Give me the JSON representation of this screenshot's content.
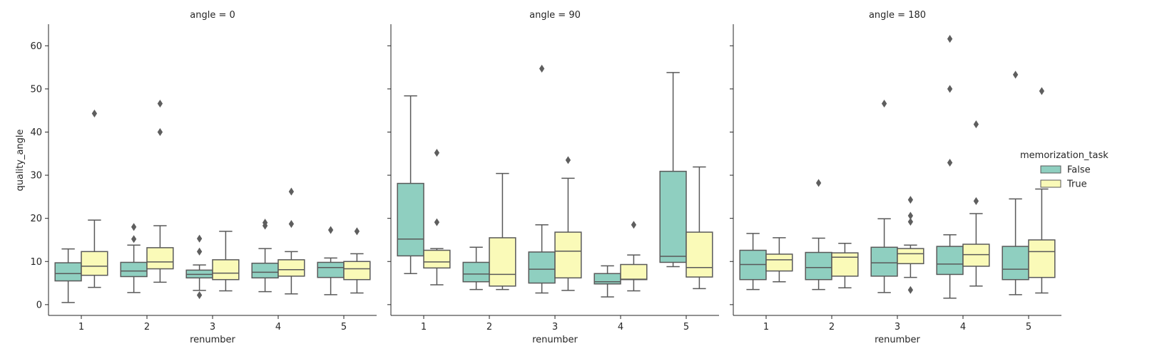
{
  "figure": {
    "y_label": "quality_angle",
    "legend_title": "memorization_task",
    "hue_order": [
      "False",
      "True"
    ],
    "hue_colors": [
      "#8fcfc0",
      "#fafab8"
    ],
    "box_edge_color": "#595959",
    "panel_titles": [
      "angle = 0",
      "angle = 90",
      "angle = 180"
    ]
  },
  "chart_data": [
    {
      "type": "box",
      "title": "angle = 0",
      "xlabel": "renumber",
      "ylabel": "quality_angle",
      "categories": [
        "1",
        "2",
        "3",
        "4",
        "5"
      ],
      "ylim": [
        -2.5,
        65
      ],
      "yticks": [
        0,
        10,
        20,
        30,
        40,
        50,
        60
      ],
      "legend": "right",
      "series": [
        {
          "name": "False",
          "boxes": [
            {
              "q1": 5.5,
              "median": 7.2,
              "q3": 9.7,
              "whislo": 0.5,
              "whishi": 12.9,
              "fliers": []
            },
            {
              "q1": 6.5,
              "median": 7.8,
              "q3": 9.8,
              "whislo": 2.8,
              "whishi": 13.8,
              "fliers": [
                18.0,
                15.2
              ]
            },
            {
              "q1": 6.2,
              "median": 7.0,
              "q3": 8.0,
              "whislo": 3.3,
              "whishi": 9.2,
              "fliers": [
                15.3,
                12.3,
                2.2
              ]
            },
            {
              "q1": 6.2,
              "median": 7.5,
              "q3": 9.6,
              "whislo": 3.0,
              "whishi": 13.0,
              "fliers": [
                19.0,
                18.3
              ]
            },
            {
              "q1": 6.3,
              "median": 8.6,
              "q3": 9.8,
              "whislo": 2.3,
              "whishi": 10.8,
              "fliers": [
                17.3
              ]
            }
          ]
        },
        {
          "name": "True",
          "boxes": [
            {
              "q1": 6.8,
              "median": 8.9,
              "q3": 12.3,
              "whislo": 4.0,
              "whishi": 19.6,
              "fliers": [
                44.3
              ]
            },
            {
              "q1": 8.3,
              "median": 9.9,
              "q3": 13.2,
              "whislo": 5.2,
              "whishi": 18.3,
              "fliers": [
                46.6,
                40.0
              ]
            },
            {
              "q1": 5.8,
              "median": 7.3,
              "q3": 10.4,
              "whislo": 3.2,
              "whishi": 17.0,
              "fliers": []
            },
            {
              "q1": 6.6,
              "median": 8.1,
              "q3": 10.4,
              "whislo": 2.5,
              "whishi": 12.3,
              "fliers": [
                26.2,
                18.7
              ]
            },
            {
              "q1": 5.8,
              "median": 8.3,
              "q3": 10.0,
              "whislo": 2.7,
              "whishi": 11.8,
              "fliers": [
                17.0
              ]
            }
          ]
        }
      ]
    },
    {
      "type": "box",
      "title": "angle = 90",
      "xlabel": "renumber",
      "ylabel": "",
      "categories": [
        "1",
        "2",
        "3",
        "4",
        "5"
      ],
      "ylim": [
        -2.5,
        65
      ],
      "yticks": [
        0,
        10,
        20,
        30,
        40,
        50,
        60
      ],
      "legend": "right",
      "series": [
        {
          "name": "False",
          "boxes": [
            {
              "q1": 11.3,
              "median": 15.2,
              "q3": 28.1,
              "whislo": 7.2,
              "whishi": 48.4,
              "fliers": []
            },
            {
              "q1": 5.3,
              "median": 7.1,
              "q3": 9.8,
              "whislo": 3.5,
              "whishi": 13.3,
              "fliers": []
            },
            {
              "q1": 5.0,
              "median": 8.2,
              "q3": 12.2,
              "whislo": 2.7,
              "whishi": 18.5,
              "fliers": [
                54.7
              ]
            },
            {
              "q1": 4.8,
              "median": 5.3,
              "q3": 7.2,
              "whislo": 1.8,
              "whishi": 9.0,
              "fliers": []
            },
            {
              "q1": 9.8,
              "median": 11.2,
              "q3": 30.9,
              "whislo": 8.8,
              "whishi": 53.8,
              "fliers": []
            }
          ]
        },
        {
          "name": "True",
          "boxes": [
            {
              "q1": 8.5,
              "median": 9.9,
              "q3": 12.6,
              "whislo": 4.6,
              "whishi": 13.0,
              "fliers": [
                35.2,
                19.1
              ]
            },
            {
              "q1": 4.3,
              "median": 7.0,
              "q3": 15.5,
              "whislo": 3.5,
              "whishi": 30.4,
              "fliers": []
            },
            {
              "q1": 6.2,
              "median": 12.4,
              "q3": 16.8,
              "whislo": 3.3,
              "whishi": 29.3,
              "fliers": [
                33.5
              ]
            },
            {
              "q1": 5.8,
              "median": 5.9,
              "q3": 9.3,
              "whislo": 3.2,
              "whishi": 11.5,
              "fliers": [
                18.5
              ]
            },
            {
              "q1": 6.4,
              "median": 8.6,
              "q3": 16.8,
              "whislo": 3.7,
              "whishi": 31.9,
              "fliers": []
            }
          ]
        }
      ]
    },
    {
      "type": "box",
      "title": "angle = 180",
      "xlabel": "renumber",
      "ylabel": "",
      "categories": [
        "1",
        "2",
        "3",
        "4",
        "5"
      ],
      "ylim": [
        -2.5,
        65
      ],
      "yticks": [
        0,
        10,
        20,
        30,
        40,
        50,
        60
      ],
      "legend": "right",
      "series": [
        {
          "name": "False",
          "boxes": [
            {
              "q1": 5.8,
              "median": 9.3,
              "q3": 12.6,
              "whislo": 3.5,
              "whishi": 16.5,
              "fliers": []
            },
            {
              "q1": 5.8,
              "median": 8.6,
              "q3": 12.1,
              "whislo": 3.5,
              "whishi": 15.4,
              "fliers": [
                28.2
              ]
            },
            {
              "q1": 6.6,
              "median": 9.7,
              "q3": 13.3,
              "whislo": 2.8,
              "whishi": 19.9,
              "fliers": [
                46.6
              ]
            },
            {
              "q1": 7.0,
              "median": 9.4,
              "q3": 13.5,
              "whislo": 1.5,
              "whishi": 16.2,
              "fliers": [
                61.6,
                50.0,
                32.9
              ]
            },
            {
              "q1": 5.8,
              "median": 8.2,
              "q3": 13.5,
              "whislo": 2.3,
              "whishi": 24.5,
              "fliers": [
                53.3
              ]
            }
          ]
        },
        {
          "name": "True",
          "boxes": [
            {
              "q1": 7.8,
              "median": 10.4,
              "q3": 11.7,
              "whislo": 5.3,
              "whishi": 15.5,
              "fliers": []
            },
            {
              "q1": 6.6,
              "median": 11.0,
              "q3": 12.0,
              "whislo": 3.9,
              "whishi": 14.2,
              "fliers": []
            },
            {
              "q1": 9.5,
              "median": 11.8,
              "q3": 13.0,
              "whislo": 6.3,
              "whishi": 13.8,
              "fliers": [
                24.3,
                20.6,
                19.2,
                3.4
              ]
            },
            {
              "q1": 8.9,
              "median": 11.6,
              "q3": 14.0,
              "whislo": 4.3,
              "whishi": 21.1,
              "fliers": [
                41.8,
                24.0
              ]
            },
            {
              "q1": 6.3,
              "median": 12.3,
              "q3": 15.0,
              "whislo": 2.7,
              "whishi": 26.8,
              "fliers": [
                49.5
              ]
            }
          ]
        }
      ]
    }
  ]
}
